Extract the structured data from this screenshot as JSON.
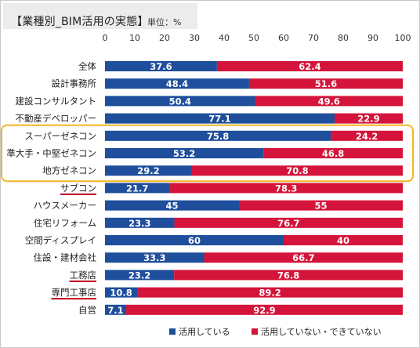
{
  "header": {
    "title": "【業種別_BIM活用の実態】",
    "unit": "単位：%"
  },
  "chart_data": {
    "type": "bar",
    "orientation": "horizontal",
    "stacked": true,
    "categories": [
      "全体",
      "設計事務所",
      "建設コンサルタント",
      "不動産デベロッパー",
      "スーパーゼネコン",
      "準大手・中堅ゼネコン",
      "地方ゼネコン",
      "サブコン",
      "ハウスメーカー",
      "住宅リフォーム",
      "空間ディスプレイ",
      "住設・建材会社",
      "工務店",
      "専門工事店",
      "自営"
    ],
    "series": [
      {
        "name": "活用している",
        "color": "#1f4e9c",
        "values": [
          37.6,
          48.4,
          50.4,
          77.1,
          75.8,
          53.2,
          29.2,
          21.7,
          45,
          23.3,
          60,
          33.3,
          23.2,
          10.8,
          7.1
        ]
      },
      {
        "name": "活用していない・できていない",
        "color": "#d4143a",
        "values": [
          62.4,
          51.6,
          49.6,
          22.9,
          24.2,
          46.8,
          70.8,
          78.3,
          55,
          76.7,
          40,
          66.7,
          76.8,
          89.2,
          92.9
        ]
      }
    ],
    "value_labels": [
      [
        "37.6",
        "48.4",
        "50.4",
        "77.1",
        "75.8",
        "53.2",
        "29.2",
        "21.7",
        "45",
        "23.3",
        "60",
        "33.3",
        "23.2",
        "10.8",
        "7.1"
      ],
      [
        "62.4",
        "51.6",
        "49.6",
        "22.9",
        "24.2",
        "46.8",
        "70.8",
        "78.3",
        "55",
        "76.7",
        "40",
        "66.7",
        "76.8",
        "89.2",
        "92.9"
      ]
    ],
    "xlim": [
      0,
      100
    ],
    "xticks": [
      "0",
      "10",
      "20",
      "30",
      "40",
      "50",
      "60",
      "70",
      "80",
      "90",
      "100"
    ],
    "legend_position": "bottom",
    "highlight_box": {
      "color": "#f2b522",
      "categories": [
        "スーパーゼネコン",
        "準大手・中堅ゼネコン",
        "地方ゼネコン"
      ]
    },
    "underlined_categories": {
      "color": "#c00020",
      "categories": [
        "サブコン",
        "工務店",
        "専門工事店"
      ]
    }
  }
}
